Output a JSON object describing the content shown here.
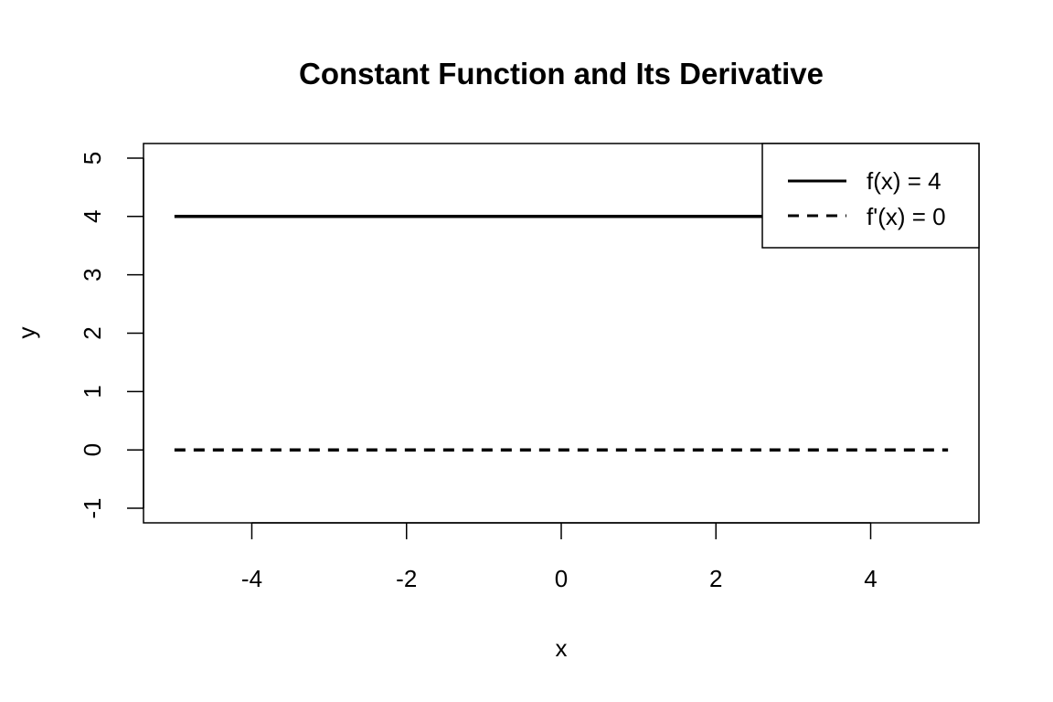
{
  "chart_data": {
    "type": "line",
    "title": "Constant Function and Its Derivative",
    "xlabel": "x",
    "ylabel": "y",
    "xlim": [
      -5.4,
      5.4
    ],
    "ylim": [
      -1.25,
      5.25
    ],
    "x_ticks": [
      -4,
      -2,
      0,
      2,
      4
    ],
    "y_ticks": [
      -1,
      0,
      1,
      2,
      3,
      4,
      5
    ],
    "x_tick_labels": [
      "-4",
      "-2",
      "0",
      "2",
      "4"
    ],
    "y_tick_labels": [
      "-1",
      "0",
      "1",
      "2",
      "3",
      "4",
      "5"
    ],
    "grid": false,
    "legend_position": "top-right",
    "series": [
      {
        "name": "f(x) = 4",
        "x": [
          -5,
          5
        ],
        "y": [
          4,
          4
        ],
        "style": "solid",
        "color": "#000000"
      },
      {
        "name": "f'(x) = 0",
        "x": [
          -5,
          5
        ],
        "y": [
          0,
          0
        ],
        "style": "dashed",
        "color": "#000000"
      }
    ]
  }
}
